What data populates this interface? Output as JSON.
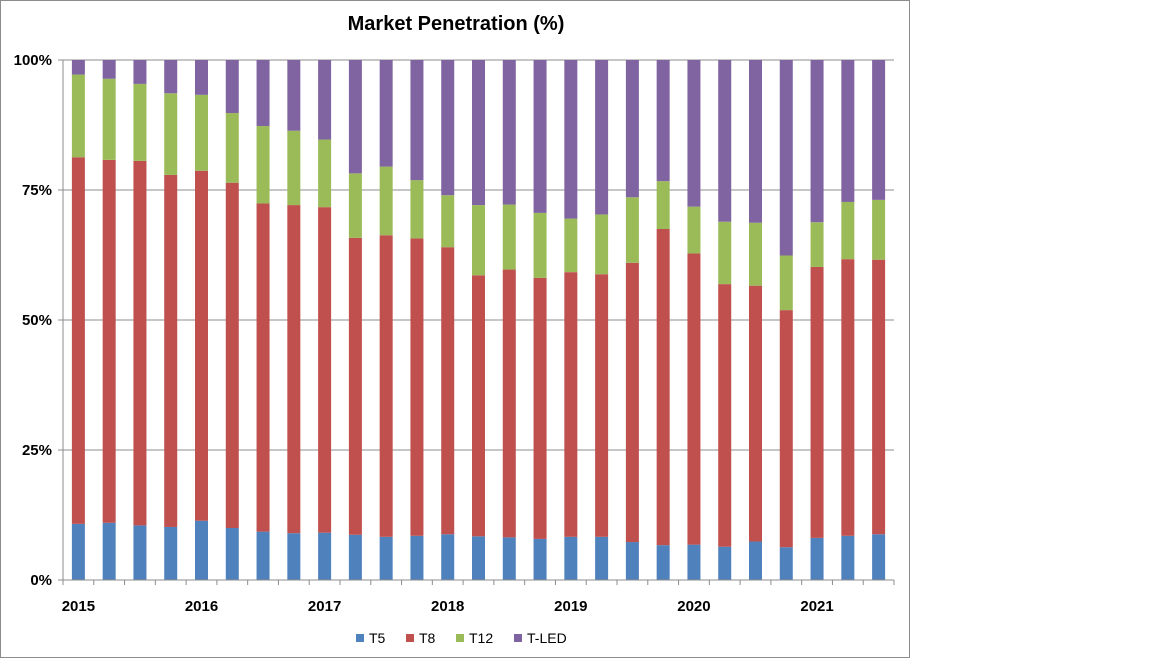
{
  "chart_data": {
    "type": "bar",
    "stacked": "percent",
    "title": "Market Penetration (%)",
    "xlabel": "",
    "ylabel": "",
    "ylim": [
      0,
      100
    ],
    "y_ticks": [
      "0%",
      "25%",
      "50%",
      "75%",
      "100%"
    ],
    "x_tick_labels": [
      "2015",
      "2016",
      "2017",
      "2018",
      "2019",
      "2020",
      "2021"
    ],
    "x_tick_positions": [
      0,
      4,
      8,
      12,
      16,
      20,
      24
    ],
    "grid": true,
    "legend": "bottom",
    "categories": [
      "2015 Q1",
      "2015 Q2",
      "2015 Q3",
      "2015 Q4",
      "2016 Q1",
      "2016 Q2",
      "2016 Q3",
      "2016 Q4",
      "2017 Q1",
      "2017 Q2",
      "2017 Q3",
      "2017 Q4",
      "2018 Q1",
      "2018 Q2",
      "2018 Q3",
      "2018 Q4",
      "2019 Q1",
      "2019 Q2",
      "2019 Q3",
      "2019 Q4",
      "2020 Q1",
      "2020 Q2",
      "2020 Q3",
      "2020 Q4",
      "2021 Q1",
      "2021 Q2",
      "2021 Q3"
    ],
    "series": [
      {
        "name": "T5",
        "color": "#4F81BD",
        "values": [
          10.8,
          11.0,
          10.5,
          10.2,
          11.4,
          10.0,
          9.3,
          9.0,
          9.1,
          8.7,
          8.3,
          8.5,
          8.8,
          8.4,
          8.2,
          7.9,
          8.3,
          8.3,
          7.3,
          6.7,
          6.8,
          6.4,
          7.4,
          6.3,
          8.1,
          8.5,
          8.8
        ]
      },
      {
        "name": "T8",
        "color": "#C0504D",
        "values": [
          70.5,
          69.8,
          70.1,
          67.7,
          67.3,
          66.4,
          63.1,
          63.1,
          62.6,
          57.1,
          58.0,
          57.2,
          55.2,
          50.2,
          51.5,
          50.2,
          50.9,
          50.5,
          53.7,
          60.8,
          56.0,
          50.5,
          49.2,
          45.6,
          52.1,
          53.2,
          52.8
        ]
      },
      {
        "name": "T12",
        "color": "#9BBB59",
        "values": [
          15.9,
          15.6,
          14.8,
          15.7,
          14.6,
          13.4,
          14.9,
          14.3,
          13.0,
          12.4,
          13.2,
          11.2,
          10.0,
          13.5,
          12.5,
          12.5,
          10.3,
          11.5,
          12.6,
          9.2,
          9.0,
          12.0,
          12.1,
          10.5,
          8.6,
          11.0,
          11.5
        ]
      },
      {
        "name": "T-LED",
        "color": "#8064A2",
        "values": [
          2.8,
          3.6,
          4.6,
          6.4,
          6.7,
          10.2,
          12.7,
          13.6,
          15.3,
          21.8,
          20.5,
          23.1,
          26.0,
          27.9,
          27.8,
          29.4,
          30.5,
          29.7,
          26.4,
          23.3,
          28.2,
          31.1,
          31.3,
          37.6,
          31.2,
          27.3,
          26.9
        ]
      }
    ]
  }
}
